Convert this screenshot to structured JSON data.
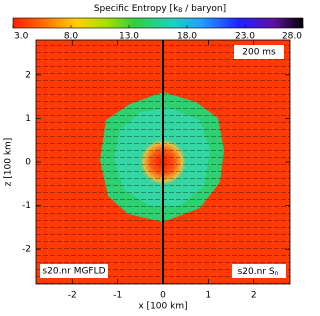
{
  "chart_data": {
    "type": "heatmap",
    "colorbar_label": [
      "Specific Entropy [k",
      "B",
      " / baryon]"
    ],
    "clim": [
      3.0,
      28.0
    ],
    "cticks": [
      {
        "value": 3,
        "label": "3.0"
      },
      {
        "value": 8,
        "label": "8.0"
      },
      {
        "value": 13,
        "label": "13.0"
      },
      {
        "value": 18,
        "label": "18.0"
      },
      {
        "value": 23,
        "label": "23.0"
      },
      {
        "value": 28,
        "label": "28.0"
      }
    ],
    "x_label": "x [100 km]",
    "y_label": "z [100 km]",
    "xlim": [
      -2.8,
      2.8
    ],
    "ylim": [
      -2.8,
      2.8
    ],
    "xticks": [
      -2,
      -1,
      0,
      1,
      2
    ],
    "yticks": [
      -2,
      -1,
      0,
      1,
      2
    ],
    "annotations": {
      "time": "200 ms",
      "left": "s20.nr MGFLD",
      "right": [
        "s20.nr S",
        "n"
      ]
    }
  }
}
